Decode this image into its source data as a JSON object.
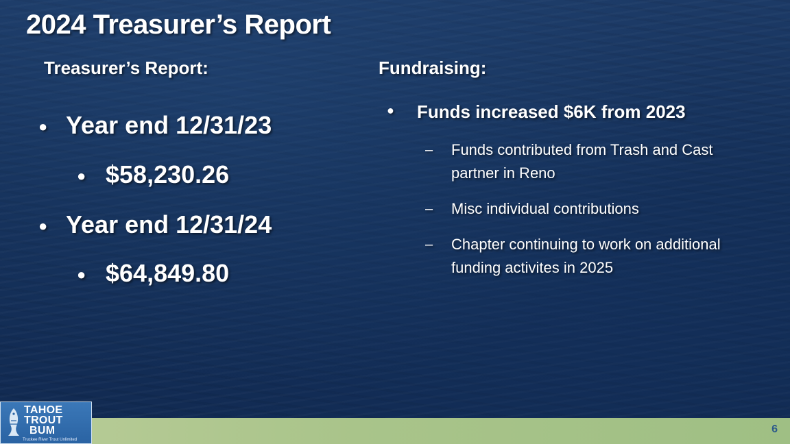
{
  "title": "2024 Treasurer’s Report",
  "left": {
    "heading": "Treasurer’s Report:",
    "items": [
      {
        "label": "Year end 12/31/23",
        "amount": "$58,230.26"
      },
      {
        "label": "Year end 12/31/24",
        "amount": "$64,849.80"
      }
    ]
  },
  "right": {
    "heading": "Fundraising:",
    "bullet": "Funds increased $6K from 2023",
    "subitems": [
      "Funds contributed from Trash and Cast partner in Reno",
      "Misc individual contributions",
      "Chapter continuing to work on additional funding activites in 2025"
    ]
  },
  "logo": {
    "line1": "TAHOE",
    "line2": "TROUT",
    "line3": "BUM",
    "tagline": "Truckee River Trout Unlimited"
  },
  "page_number": "6",
  "colors": {
    "background": "#142f58",
    "footer_band": "#a9c48a",
    "text": "#ffffff",
    "page_number": "#2d5a8a"
  }
}
